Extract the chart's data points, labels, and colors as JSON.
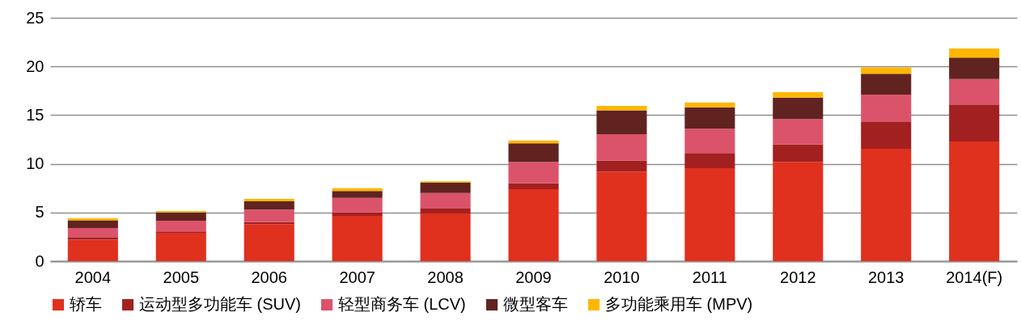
{
  "chart_data": {
    "type": "bar",
    "stacked": true,
    "categories": [
      "2004",
      "2005",
      "2006",
      "2007",
      "2008",
      "2009",
      "2010",
      "2011",
      "2012",
      "2013",
      "2014(F)"
    ],
    "series": [
      {
        "name": "轿车",
        "color": "#e0301e",
        "values": [
          2.2,
          2.9,
          3.8,
          4.65,
          4.9,
          7.4,
          9.2,
          9.55,
          10.2,
          11.55,
          12.3
        ]
      },
      {
        "name": "运动型多功能车 (SUV)",
        "color": "#a32020",
        "values": [
          0.2,
          0.15,
          0.2,
          0.35,
          0.5,
          0.6,
          1.15,
          1.55,
          1.8,
          2.8,
          3.8
        ]
      },
      {
        "name": "轻型商务车 (LCV)",
        "color": "#db536a",
        "values": [
          1.0,
          1.1,
          1.3,
          1.5,
          1.6,
          2.2,
          2.7,
          2.5,
          2.6,
          2.75,
          2.6
        ]
      },
      {
        "name": "微型客车",
        "color": "#602320",
        "values": [
          0.8,
          0.85,
          0.85,
          0.7,
          1.05,
          1.9,
          2.45,
          2.2,
          2.2,
          2.15,
          2.2
        ]
      },
      {
        "name": "多功能乘用车 (MPV)",
        "color": "#ffb600",
        "values": [
          0.2,
          0.15,
          0.25,
          0.3,
          0.15,
          0.3,
          0.45,
          0.5,
          0.55,
          0.65,
          0.95
        ]
      }
    ],
    "ylim": [
      0,
      25
    ],
    "yticks": [
      0,
      5,
      10,
      15,
      20,
      25
    ],
    "grid": "y",
    "legend": "bottom"
  }
}
